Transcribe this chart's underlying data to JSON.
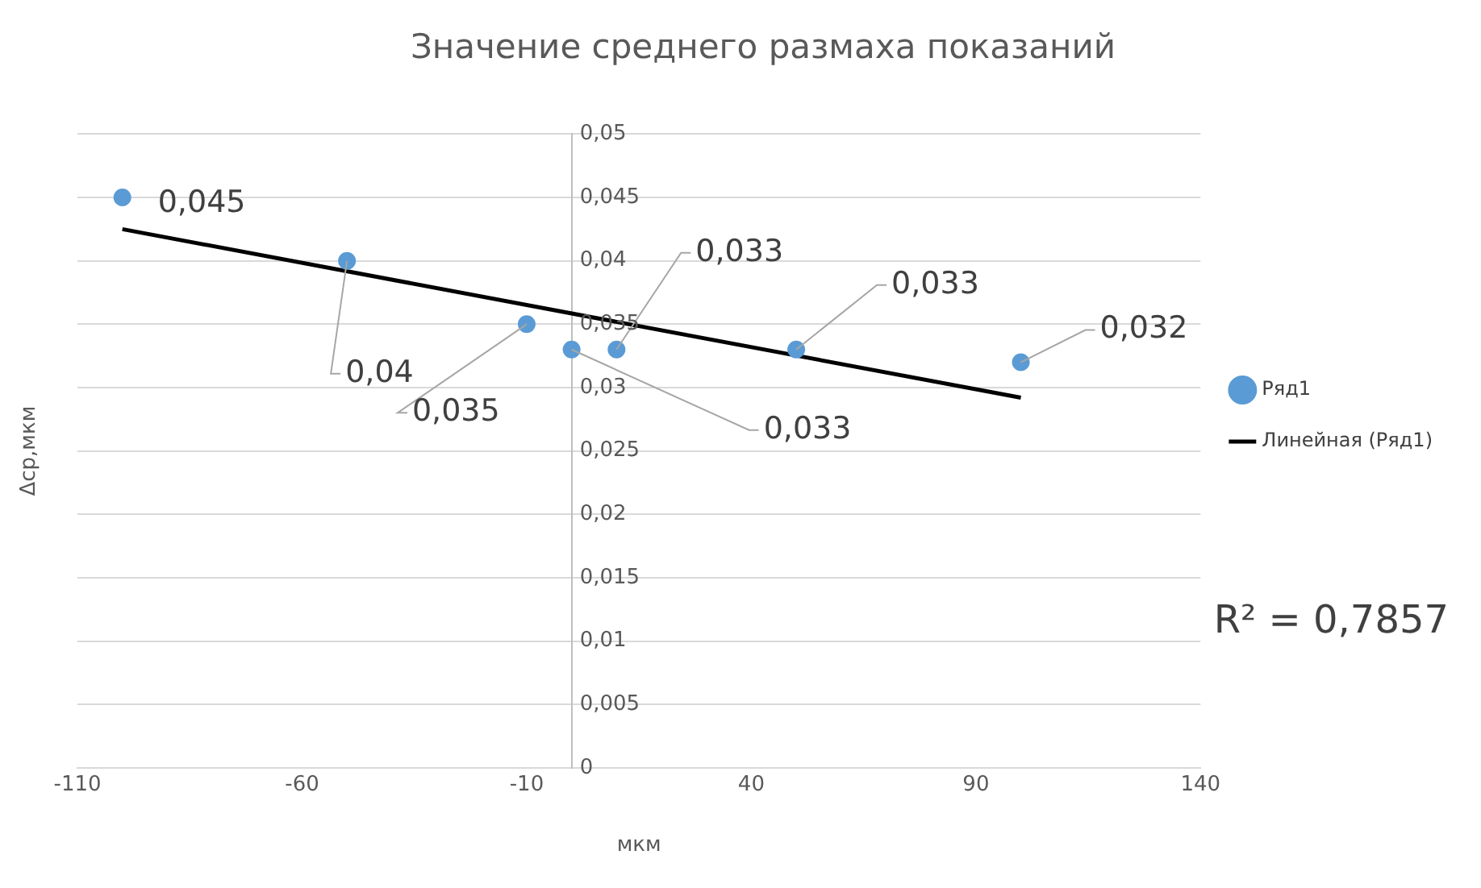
{
  "chart_data": {
    "type": "scatter",
    "title": "Значение среднего размаха показаний",
    "xlabel": "мкм",
    "ylabel": "Δср,мкм",
    "xlim": [
      -110,
      140
    ],
    "xticks": [
      -110,
      -60,
      -10,
      40,
      90,
      140
    ],
    "ylim": [
      0,
      0.05
    ],
    "yticks": [
      {
        "value": 0,
        "label": "0"
      },
      {
        "value": 0.005,
        "label": "0,005"
      },
      {
        "value": 0.01,
        "label": "0,01"
      },
      {
        "value": 0.015,
        "label": "0,015"
      },
      {
        "value": 0.02,
        "label": "0,02"
      },
      {
        "value": 0.025,
        "label": "0,025"
      },
      {
        "value": 0.03,
        "label": "0,03"
      },
      {
        "value": 0.035,
        "label": "0,035"
      },
      {
        "value": 0.04,
        "label": "0,04"
      },
      {
        "value": 0.045,
        "label": "0,045"
      },
      {
        "value": 0.05,
        "label": "0,05"
      }
    ],
    "grid": "y",
    "legend": "right",
    "marker": "circle",
    "series": [
      {
        "name": "Ряд1",
        "color": "#5b9bd5",
        "x": [
          -100,
          -50,
          -10,
          0,
          10,
          50,
          100
        ],
        "values": [
          0.045,
          0.04,
          0.035,
          0.033,
          0.033,
          0.033,
          0.032
        ],
        "value_labels": [
          "0,045",
          "0,04",
          "0,035",
          "0,033",
          "0,033",
          "0,033",
          "0,032"
        ]
      },
      {
        "name": "Линейная (Ряд1)",
        "type": "line",
        "marker": "none",
        "color": "#000000",
        "x": [
          -100,
          100
        ],
        "values": [
          0.0425,
          0.0292
        ]
      }
    ],
    "annotations": [
      "R² = 0,7857"
    ]
  }
}
